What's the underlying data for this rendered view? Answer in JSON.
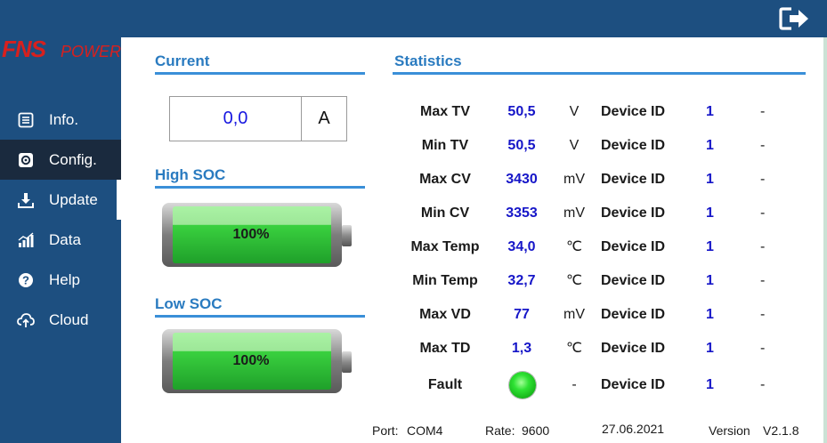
{
  "sidebar": {
    "logo_text": "FNS POWER",
    "items": [
      {
        "label": "Info.",
        "icon": "list-icon"
      },
      {
        "label": "Config.",
        "icon": "gear-icon"
      },
      {
        "label": "Update",
        "icon": "download-icon"
      },
      {
        "label": "Data",
        "icon": "bar-chart-icon"
      },
      {
        "label": "Help",
        "icon": "help-icon"
      },
      {
        "label": "Cloud",
        "icon": "cloud-upload-icon"
      }
    ],
    "active_index": 1
  },
  "header": {
    "exit_icon": "exit-icon"
  },
  "current": {
    "title": "Current",
    "value": "0,0",
    "unit": "A"
  },
  "high_soc": {
    "title": "High SOC",
    "percent": "100%"
  },
  "low_soc": {
    "title": "Low SOC",
    "percent": "100%"
  },
  "statistics": {
    "title": "Statistics",
    "rows": [
      {
        "label": "Max TV",
        "value": "50,5",
        "unit": "V",
        "device_label": "Device ID",
        "device_id": "1",
        "dash": "-"
      },
      {
        "label": "Min TV",
        "value": "50,5",
        "unit": "V",
        "device_label": "Device ID",
        "device_id": "1",
        "dash": "-"
      },
      {
        "label": "Max CV",
        "value": "3430",
        "unit": "mV",
        "device_label": "Device ID",
        "device_id": "1",
        "dash": "-"
      },
      {
        "label": "Min CV",
        "value": "3353",
        "unit": "mV",
        "device_label": "Device ID",
        "device_id": "1",
        "dash": "-"
      },
      {
        "label": "Max Temp",
        "value": "34,0",
        "unit": "℃",
        "device_label": "Device ID",
        "device_id": "1",
        "dash": "-"
      },
      {
        "label": "Min Temp",
        "value": "32,7",
        "unit": "℃",
        "device_label": "Device ID",
        "device_id": "1",
        "dash": "-"
      },
      {
        "label": "Max VD",
        "value": "77",
        "unit": "mV",
        "device_label": "Device ID",
        "device_id": "1",
        "dash": "-"
      },
      {
        "label": "Max TD",
        "value": "1,3",
        "unit": "℃",
        "device_label": "Device ID",
        "device_id": "1",
        "dash": "-"
      },
      {
        "label": "Fault",
        "value": "",
        "unit": "-",
        "device_label": "Device ID",
        "device_id": "1",
        "dash": "-"
      }
    ],
    "fault_led_color": "#2fe234"
  },
  "footer": {
    "port_label": "Port:",
    "port_value": "COM4",
    "rate_label": "Rate:",
    "rate_value": "9600",
    "date": "27.06.2021",
    "version_label": "Version",
    "version_value": "V2.1.8"
  },
  "colors": {
    "sidebar_bg": "#1d4f80",
    "active_bg": "#1a2a3e",
    "accent": "#2a7bc0",
    "value_blue": "#1616c8"
  }
}
